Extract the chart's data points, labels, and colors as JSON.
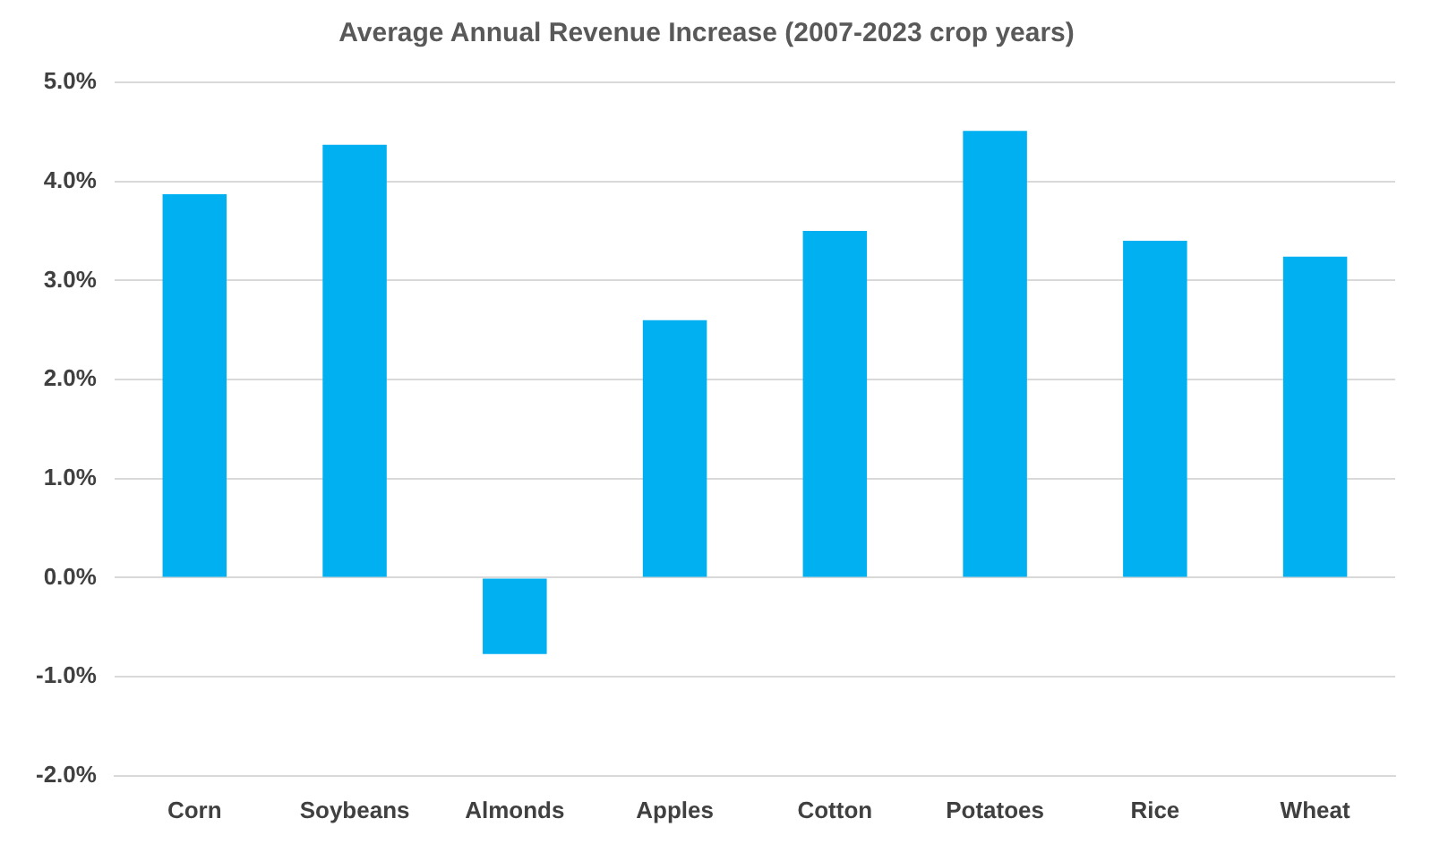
{
  "chart_data": {
    "type": "bar",
    "title": "Average Annual Revenue Increase (2007-2023 crop years)",
    "categories": [
      "Corn",
      "Soybeans",
      "Almonds",
      "Apples",
      "Cotton",
      "Potatoes",
      "Rice",
      "Wheat"
    ],
    "values": [
      3.87,
      4.37,
      -0.77,
      2.6,
      3.5,
      4.51,
      3.4,
      3.24
    ],
    "color": "#00b0f0",
    "ylim": [
      -2,
      5
    ],
    "yticks": [
      {
        "value": -2,
        "label": "-2.0%"
      },
      {
        "value": -1,
        "label": "-1.0%"
      },
      {
        "value": 0,
        "label": "0.0%"
      },
      {
        "value": 1,
        "label": "1.0%"
      },
      {
        "value": 2,
        "label": "2.0%"
      },
      {
        "value": 3,
        "label": "3.0%"
      },
      {
        "value": 4,
        "label": "4.0%"
      },
      {
        "value": 5,
        "label": "5.0%"
      }
    ],
    "grid": "y",
    "legend": false
  }
}
